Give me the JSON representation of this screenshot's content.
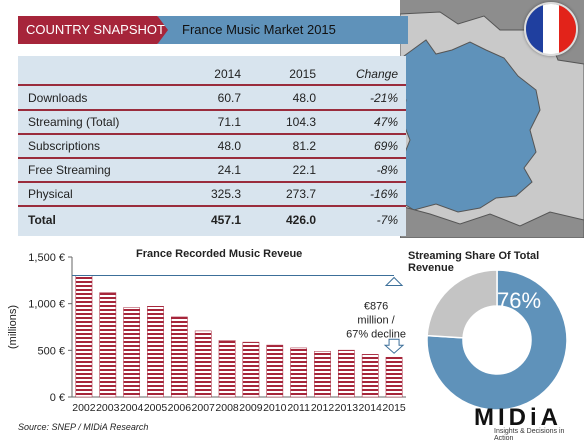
{
  "banner": {
    "label": "COUNTRY SNAPSHOT",
    "title": "France Music Market 2015"
  },
  "icons": {
    "map": "france-map",
    "flag": "france-flag",
    "arrows": "arrow-icon"
  },
  "colors": {
    "banner_red": "#a6253a",
    "banner_blue": "#5f92ba",
    "france": "#5f92ba",
    "neighbours": "#c9c9c9",
    "bars": "#a6253a",
    "pie_streaming": "#5f92ba",
    "pie_other": "#c4c4c4",
    "flag_blue": "#1f3f9f",
    "flag_white": "#ffffff",
    "flag_red": "#e2231a"
  },
  "table": {
    "headers": [
      "",
      "2014",
      "2015",
      "Change"
    ],
    "rows": [
      {
        "label": "Downloads",
        "y2014": "60.7",
        "y2015": "48.0",
        "change": "-21%"
      },
      {
        "label": "Streaming (Total)",
        "y2014": "71.1",
        "y2015": "104.3",
        "change": "47%"
      },
      {
        "label": "Subscriptions",
        "y2014": "48.0",
        "y2015": "81.2",
        "change": "69%"
      },
      {
        "label": "Free Streaming",
        "y2014": "24.1",
        "y2015": "22.1",
        "change": "-8%"
      },
      {
        "label": "Physical",
        "y2014": "325.3",
        "y2015": "273.7",
        "change": "-16%"
      },
      {
        "label": "Total",
        "y2014": "457.1",
        "y2015": "426.0",
        "change": "-7%"
      }
    ]
  },
  "chart_data": [
    {
      "type": "bar",
      "title": "France Recorded Music Reveue",
      "ylabel": "(millions)",
      "categories": [
        "2002",
        "2003",
        "2004",
        "2005",
        "2006",
        "2007",
        "2008",
        "2009",
        "2010",
        "2011",
        "2012",
        "2013",
        "2014",
        "2015"
      ],
      "values": [
        1302,
        1118,
        958,
        972,
        858,
        708,
        606,
        588,
        556,
        526,
        490,
        502,
        457,
        426
      ],
      "ylim": [
        0,
        1500
      ],
      "yticks": [
        "0 €",
        "500 €",
        "1,000 €",
        "1,500 €"
      ],
      "annotation": "€876 million / 67% decline"
    },
    {
      "type": "pie",
      "title": "Streaming Share Of Total Revenue",
      "slices": [
        {
          "label": "76%",
          "value": 76
        },
        {
          "label": "",
          "value": 24
        }
      ]
    }
  ],
  "footer": {
    "source": "Source: SNEP / MIDiA Research",
    "brand": "MIDiA",
    "tagline": "Insights & Decisions in Action"
  }
}
